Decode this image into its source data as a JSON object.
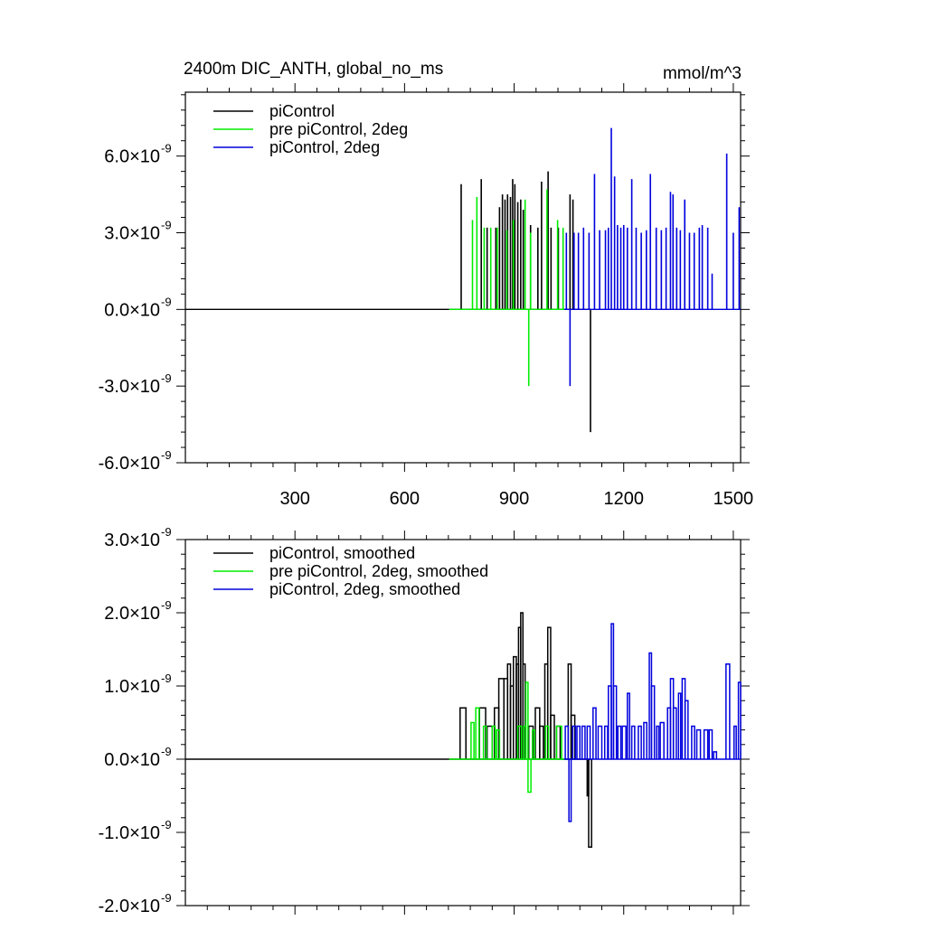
{
  "chart_data": [
    {
      "type": "line",
      "title": "2400m DIC_ANTH, global_no_ms",
      "units": "mmol/m^3",
      "xlim": [
        0,
        1520
      ],
      "ylim": [
        -6e-09,
        8.5e-09
      ],
      "xticks": [
        300,
        600,
        900,
        1200,
        1500
      ],
      "xtick_labels": [
        "300",
        "600",
        "900",
        "1200",
        "1500"
      ],
      "yticks": [
        -6e-09,
        -3e-09,
        0.0,
        3e-09,
        6e-09
      ],
      "ytick_labels": [
        {
          "mant": "-6.0",
          "exp": "-9"
        },
        {
          "mant": "-3.0",
          "exp": "-9"
        },
        {
          "mant": "0.0",
          "exp": "-9"
        },
        {
          "mant": "3.0",
          "exp": "-9"
        },
        {
          "mant": "6.0",
          "exp": "-9"
        }
      ],
      "times_sign": "×",
      "legend_position": "top-left",
      "series": [
        {
          "name": "piControl",
          "color": "#000000",
          "baseline_start": 0,
          "baseline_end": 1110,
          "spikes": [
            [
              755,
              4.9e-09
            ],
            [
              810,
              5.1e-09
            ],
            [
              826,
              3.2e-09
            ],
            [
              850,
              3.2e-09
            ],
            [
              860,
              4e-09
            ],
            [
              868,
              4.5e-09
            ],
            [
              875,
              4.3e-09
            ],
            [
              882,
              4.5e-09
            ],
            [
              890,
              4.4e-09
            ],
            [
              896,
              5.1e-09
            ],
            [
              902,
              4.9e-09
            ],
            [
              910,
              4.2e-09
            ],
            [
              918,
              4.3e-09
            ],
            [
              925,
              3.9e-09
            ],
            [
              945,
              3.3e-09
            ],
            [
              965,
              3.2e-09
            ],
            [
              975,
              5e-09
            ],
            [
              993,
              5.4e-09
            ],
            [
              1001,
              3.2e-09
            ],
            [
              1021,
              3.2e-09
            ],
            [
              1053,
              4.5e-09
            ],
            [
              1061,
              4.3e-09
            ],
            [
              1109,
              -4.8e-09
            ]
          ]
        },
        {
          "name": "pre piControl, 2deg",
          "color": "#00ee00",
          "baseline_start": 722,
          "baseline_end": 1037,
          "spikes": [
            [
              786,
              3.5e-09
            ],
            [
              798,
              4.4e-09
            ],
            [
              818,
              3.2e-09
            ],
            [
              836,
              3.2e-09
            ],
            [
              854,
              3.2e-09
            ],
            [
              880,
              3.1e-09
            ],
            [
              898,
              3.5e-09
            ],
            [
              930,
              4.3e-09
            ],
            [
              940,
              -3e-09
            ],
            [
              945,
              3e-09
            ],
            [
              990,
              4.7e-09
            ],
            [
              1019,
              3.5e-09
            ],
            [
              1034,
              3.2e-09
            ]
          ]
        },
        {
          "name": "piControl, 2deg",
          "color": "#0000dd",
          "baseline_start": 1037,
          "baseline_end": 1520,
          "spikes": [
            [
              1043,
              3e-09
            ],
            [
              1053,
              -3e-09
            ],
            [
              1064,
              3e-09
            ],
            [
              1076,
              3e-09
            ],
            [
              1090,
              3.2e-09
            ],
            [
              1105,
              3e-09
            ],
            [
              1120,
              5.3e-09
            ],
            [
              1134,
              3.1e-09
            ],
            [
              1150,
              3.1e-09
            ],
            [
              1158,
              3.2e-09
            ],
            [
              1166,
              7.1e-09
            ],
            [
              1175,
              5.2e-09
            ],
            [
              1183,
              3.3e-09
            ],
            [
              1192,
              3.2e-09
            ],
            [
              1200,
              3.3e-09
            ],
            [
              1210,
              3.2e-09
            ],
            [
              1222,
              5.1e-09
            ],
            [
              1234,
              3.2e-09
            ],
            [
              1248,
              3e-09
            ],
            [
              1262,
              3.1e-09
            ],
            [
              1273,
              5.3e-09
            ],
            [
              1289,
              3.2e-09
            ],
            [
              1303,
              3.1e-09
            ],
            [
              1316,
              3.2e-09
            ],
            [
              1328,
              4.6e-09
            ],
            [
              1335,
              4.5e-09
            ],
            [
              1345,
              3.2e-09
            ],
            [
              1355,
              3.1e-09
            ],
            [
              1367,
              4.3e-09
            ],
            [
              1380,
              3e-09
            ],
            [
              1393,
              3e-09
            ],
            [
              1407,
              3.2e-09
            ],
            [
              1415,
              3.3e-09
            ],
            [
              1430,
              3.2e-09
            ],
            [
              1442,
              1.4e-09
            ],
            [
              1482,
              6.1e-09
            ],
            [
              1500,
              3e-09
            ],
            [
              1516,
              4e-09
            ]
          ]
        }
      ]
    },
    {
      "type": "line",
      "title": "",
      "xlim": [
        0,
        1520
      ],
      "ylim": [
        -2e-09,
        3e-09
      ],
      "xticks": [
        300,
        600,
        900,
        1200,
        1500
      ],
      "yticks": [
        -2e-09,
        -1e-09,
        0.0,
        1e-09,
        2e-09,
        3e-09
      ],
      "ytick_labels": [
        {
          "mant": "-2.0",
          "exp": "-9"
        },
        {
          "mant": "-1.0",
          "exp": "-9"
        },
        {
          "mant": "0.0",
          "exp": "-9"
        },
        {
          "mant": "1.0",
          "exp": "-9"
        },
        {
          "mant": "2.0",
          "exp": "-9"
        },
        {
          "mant": "3.0",
          "exp": "-9"
        }
      ],
      "times_sign": "×",
      "legend_position": "top-left",
      "series": [
        {
          "name": "piControl, smoothed",
          "color": "#000000",
          "baseline_start": 0,
          "baseline_end": 1110,
          "pulses": [
            [
              752,
              768,
              7e-10
            ],
            [
              805,
              822,
              7e-10
            ],
            [
              826,
              840,
              4.5e-10
            ],
            [
              846,
              858,
              7e-10
            ],
            [
              858,
              872,
              1.1e-09
            ],
            [
              872,
              882,
              1.1e-09
            ],
            [
              882,
              890,
              1.3e-09
            ],
            [
              890,
              898,
              1e-09
            ],
            [
              898,
              906,
              1.4e-09
            ],
            [
              906,
              912,
              1.3e-09
            ],
            [
              912,
              918,
              1.8e-09
            ],
            [
              918,
              924,
              2e-09
            ],
            [
              924,
              930,
              1.3e-09
            ],
            [
              940,
              952,
              4.5e-10
            ],
            [
              958,
              970,
              7e-10
            ],
            [
              970,
              980,
              4.5e-10
            ],
            [
              984,
              992,
              1.3e-09
            ],
            [
              992,
              1000,
              1.8e-09
            ],
            [
              1000,
              1010,
              6e-10
            ],
            [
              1016,
              1026,
              4.5e-10
            ],
            [
              1048,
              1056,
              1.3e-09
            ],
            [
              1056,
              1066,
              6e-10
            ],
            [
              1100,
              1104,
              -5e-10
            ],
            [
              1104,
              1112,
              -1.2e-09
            ]
          ]
        },
        {
          "name": "pre piControl, 2deg, smoothed",
          "color": "#00ee00",
          "baseline_start": 722,
          "baseline_end": 1037,
          "pulses": [
            [
              782,
              790,
              5e-10
            ],
            [
              795,
              804,
              7e-10
            ],
            [
              816,
              824,
              4.5e-10
            ],
            [
              840,
              848,
              4.5e-10
            ],
            [
              852,
              860,
              4e-10
            ],
            [
              910,
              920,
              4.5e-10
            ],
            [
              926,
              932,
              4.5e-10
            ],
            [
              932,
              938,
              1.05e-09
            ],
            [
              938,
              946,
              -4.5e-10
            ],
            [
              950,
              956,
              4e-10
            ],
            [
              986,
              994,
              4.5e-10
            ],
            [
              1016,
              1030,
              4.5e-10
            ]
          ]
        },
        {
          "name": "piControl, 2deg, smoothed",
          "color": "#0000dd",
          "baseline_start": 1037,
          "baseline_end": 1520,
          "pulses": [
            [
              1040,
              1048,
              4.5e-10
            ],
            [
              1050,
              1056,
              -8.5e-10
            ],
            [
              1060,
              1068,
              4.5e-10
            ],
            [
              1072,
              1080,
              4.5e-10
            ],
            [
              1086,
              1094,
              4.5e-10
            ],
            [
              1100,
              1108,
              4.5e-10
            ],
            [
              1116,
              1124,
              7e-10
            ],
            [
              1130,
              1140,
              4.5e-10
            ],
            [
              1148,
              1156,
              4.5e-10
            ],
            [
              1158,
              1166,
              1e-09
            ],
            [
              1166,
              1172,
              1.85e-09
            ],
            [
              1172,
              1180,
              1e-09
            ],
            [
              1184,
              1192,
              4.5e-10
            ],
            [
              1196,
              1206,
              4.5e-10
            ],
            [
              1210,
              1216,
              9e-10
            ],
            [
              1222,
              1230,
              4.5e-10
            ],
            [
              1240,
              1248,
              4.5e-10
            ],
            [
              1255,
              1263,
              5e-10
            ],
            [
              1270,
              1276,
              1.45e-09
            ],
            [
              1276,
              1284,
              1e-09
            ],
            [
              1290,
              1296,
              4.5e-10
            ],
            [
              1300,
              1310,
              5e-10
            ],
            [
              1320,
              1328,
              7e-10
            ],
            [
              1328,
              1336,
              1.1e-09
            ],
            [
              1336,
              1344,
              7e-10
            ],
            [
              1350,
              1356,
              9e-10
            ],
            [
              1360,
              1368,
              1.1e-09
            ],
            [
              1368,
              1376,
              8e-10
            ],
            [
              1386,
              1394,
              4.5e-10
            ],
            [
              1400,
              1410,
              4e-10
            ],
            [
              1420,
              1430,
              4e-10
            ],
            [
              1434,
              1442,
              4e-10
            ],
            [
              1446,
              1454,
              1e-10
            ],
            [
              1480,
              1490,
              1.3e-09
            ],
            [
              1502,
              1508,
              4.5e-10
            ],
            [
              1514,
              1520,
              1.05e-09
            ]
          ]
        }
      ]
    }
  ]
}
